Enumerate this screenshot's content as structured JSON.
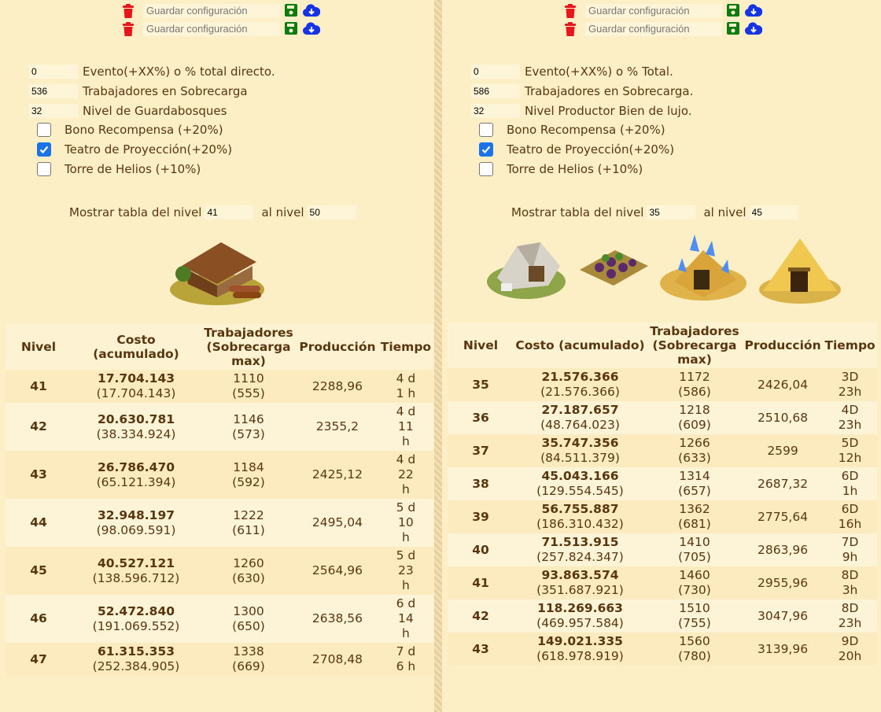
{
  "colors": {
    "background": "#fcefc5",
    "text": "#5a3610",
    "trash": "#e8161b",
    "save": "#0a7a12",
    "cloud": "#1434e6",
    "checkbox": "#1a73e8"
  },
  "left": {
    "save_rows": [
      {
        "placeholder": "Guardar configuración",
        "icons": [
          "trash-icon",
          "save-icon",
          "cloud-download-icon"
        ]
      },
      {
        "placeholder": "Guardar configuración",
        "icons": [
          "trash-icon",
          "save-icon",
          "cloud-download-icon"
        ]
      }
    ],
    "fields": [
      {
        "value": "0",
        "label": "Evento(+XX%) o % total directo."
      },
      {
        "value": "536",
        "label": "Trabajadores en Sobrecarga"
      },
      {
        "value": "32",
        "label": "Nivel de Guardabosques"
      }
    ],
    "checks": [
      {
        "label": "Bono Recompensa (+20%)",
        "checked": false
      },
      {
        "label": "Teatro de Proyección(+20%)",
        "checked": true
      },
      {
        "label": "Torre de Helios (+10%)",
        "checked": false
      }
    ],
    "range": {
      "from_label": "Mostrar tabla del nivel",
      "from": "41",
      "to_label": "al nivel",
      "to": "50"
    },
    "images": [
      "lumberjack-hut-image"
    ],
    "headers": [
      "Nivel",
      "Costo (acumulado)",
      "Trabajadores (Sobrecarga max)",
      "Producción",
      "Tiempo"
    ],
    "rows": [
      {
        "nivel": "41",
        "costo": "17.704.143",
        "acum": "(17.704.143)",
        "trab": "1110",
        "sobre": "(555)",
        "prod": "2288,96",
        "tiempo": "4 d 1 h"
      },
      {
        "nivel": "42",
        "costo": "20.630.781",
        "acum": "(38.334.924)",
        "trab": "1146",
        "sobre": "(573)",
        "prod": "2355,2",
        "tiempo": "4 d 11 h"
      },
      {
        "nivel": "43",
        "costo": "26.786.470",
        "acum": "(65.121.394)",
        "trab": "1184",
        "sobre": "(592)",
        "prod": "2425,12",
        "tiempo": "4 d 22 h"
      },
      {
        "nivel": "44",
        "costo": "32.948.197",
        "acum": "(98.069.591)",
        "trab": "1222",
        "sobre": "(611)",
        "prod": "2495,04",
        "tiempo": "5 d 10 h"
      },
      {
        "nivel": "45",
        "costo": "40.527.121",
        "acum": "(138.596.712)",
        "trab": "1260",
        "sobre": "(630)",
        "prod": "2564,96",
        "tiempo": "5 d 23 h"
      },
      {
        "nivel": "46",
        "costo": "52.472.840",
        "acum": "(191.069.552)",
        "trab": "1300",
        "sobre": "(650)",
        "prod": "2638,56",
        "tiempo": "6 d 14 h"
      },
      {
        "nivel": "47",
        "costo": "61.315.353",
        "acum": "(252.384.905)",
        "trab": "1338",
        "sobre": "(669)",
        "prod": "2708,48",
        "tiempo": "7 d 6 h"
      }
    ]
  },
  "right": {
    "save_rows": [
      {
        "placeholder": "Guardar configuración",
        "icons": [
          "trash-icon",
          "save-icon",
          "cloud-download-icon"
        ]
      },
      {
        "placeholder": "Guardar configuración",
        "icons": [
          "trash-icon",
          "save-icon",
          "cloud-download-icon"
        ]
      }
    ],
    "fields": [
      {
        "value": "0",
        "label": "Evento(+XX%) o % Total."
      },
      {
        "value": "586",
        "label": "Trabajadores en Sobrecarga."
      },
      {
        "value": "32",
        "label": "Nivel Productor Bien de lujo."
      }
    ],
    "checks": [
      {
        "label": "Bono Recompensa (+20%)",
        "checked": false
      },
      {
        "label": "Teatro de Proyección(+20%)",
        "checked": true
      },
      {
        "label": "Torre de Helios (+10%)",
        "checked": false
      }
    ],
    "range": {
      "from_label": "Mostrar tabla del nivel",
      "from": "35",
      "to_label": "al nivel",
      "to": "45"
    },
    "images": [
      "marble-quarry-image",
      "vineyard-image",
      "crystal-mine-image",
      "sulfur-pit-image"
    ],
    "headers": [
      "Nivel",
      "Costo (acumulado)",
      "Trabajadores (Sobrecarga max)",
      "Producción",
      "Tiempo"
    ],
    "rows": [
      {
        "nivel": "35",
        "costo": "21.576.366",
        "acum": "(21.576.366)",
        "trab": "1172",
        "sobre": "(586)",
        "prod": "2426,04",
        "tiempo": "3D 23h"
      },
      {
        "nivel": "36",
        "costo": "27.187.657",
        "acum": "(48.764.023)",
        "trab": "1218",
        "sobre": "(609)",
        "prod": "2510,68",
        "tiempo": "4D 23h"
      },
      {
        "nivel": "37",
        "costo": "35.747.356",
        "acum": "(84.511.379)",
        "trab": "1266",
        "sobre": "(633)",
        "prod": "2599",
        "tiempo": "5D 12h"
      },
      {
        "nivel": "38",
        "costo": "45.043.166",
        "acum": "(129.554.545)",
        "trab": "1314",
        "sobre": "(657)",
        "prod": "2687,32",
        "tiempo": "6D 1h"
      },
      {
        "nivel": "39",
        "costo": "56.755.887",
        "acum": "(186.310.432)",
        "trab": "1362",
        "sobre": "(681)",
        "prod": "2775,64",
        "tiempo": "6D 16h"
      },
      {
        "nivel": "40",
        "costo": "71.513.915",
        "acum": "(257.824.347)",
        "trab": "1410",
        "sobre": "(705)",
        "prod": "2863,96",
        "tiempo": "7D 9h"
      },
      {
        "nivel": "41",
        "costo": "93.863.574",
        "acum": "(351.687.921)",
        "trab": "1460",
        "sobre": "(730)",
        "prod": "2955,96",
        "tiempo": "8D 3h"
      },
      {
        "nivel": "42",
        "costo": "118.269.663",
        "acum": "(469.957.584)",
        "trab": "1510",
        "sobre": "(755)",
        "prod": "3047,96",
        "tiempo": "8D 23h"
      },
      {
        "nivel": "43",
        "costo": "149.021.335",
        "acum": "(618.978.919)",
        "trab": "1560",
        "sobre": "(780)",
        "prod": "3139,96",
        "tiempo": "9D 20h"
      }
    ]
  }
}
